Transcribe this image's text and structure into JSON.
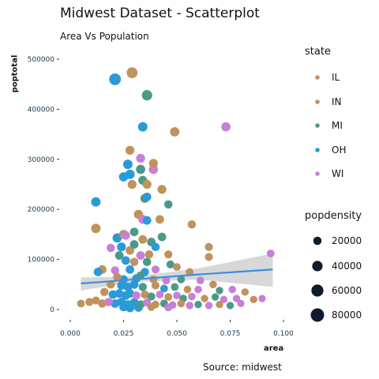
{
  "chart_data": {
    "type": "scatter",
    "title": "Midwest Dataset - Scatterplot",
    "subtitle": "Area Vs Population",
    "caption": "Source: midwest",
    "xlabel": "area",
    "ylabel": "poptotal",
    "xlim": [
      0,
      0.1
    ],
    "ylim": [
      0,
      500000
    ],
    "x_ticks": [
      "0.000",
      "0.025",
      "0.050",
      "0.075",
      "0.100"
    ],
    "y_ticks": [
      "0",
      "100000",
      "200000",
      "300000",
      "400000",
      "500000"
    ],
    "grid": false,
    "legend_placement": "right",
    "color_legend": {
      "title": "state",
      "entries": [
        {
          "name": "IL",
          "color": "#c0925e"
        },
        {
          "name": "IN",
          "color": "#c0925e"
        },
        {
          "name": "MI",
          "color": "#4a9a8a"
        },
        {
          "name": "OH",
          "color": "#2a9ad8"
        },
        {
          "name": "WI",
          "color": "#c77fd8"
        }
      ]
    },
    "size_legend": {
      "title": "popdensity",
      "entries": [
        {
          "label": "20000",
          "value": 20000
        },
        {
          "label": "40000",
          "value": 40000
        },
        {
          "label": "60000",
          "value": 60000
        },
        {
          "label": "80000",
          "value": 80000
        }
      ]
    },
    "trend_line": {
      "color": "#3a8fe0",
      "band_color": "#d4d4d4",
      "points": [
        {
          "x": 0.005,
          "y": 52000,
          "lo": 38000,
          "hi": 64000
        },
        {
          "x": 0.03,
          "y": 60000,
          "lo": 55000,
          "hi": 66000
        },
        {
          "x": 0.06,
          "y": 70000,
          "lo": 60000,
          "hi": 82000
        },
        {
          "x": 0.095,
          "y": 80000,
          "lo": 45000,
          "hi": 112000
        }
      ]
    },
    "points": [
      {
        "x": 0.021,
        "y": 460000,
        "state": "OH",
        "size": 55000
      },
      {
        "x": 0.029,
        "y": 473000,
        "state": "IN",
        "size": 45000
      },
      {
        "x": 0.036,
        "y": 428000,
        "state": "MI",
        "size": 40000
      },
      {
        "x": 0.034,
        "y": 365000,
        "state": "OH",
        "size": 30000
      },
      {
        "x": 0.049,
        "y": 355000,
        "state": "IN",
        "size": 30000
      },
      {
        "x": 0.073,
        "y": 365000,
        "state": "WI",
        "size": 28000
      },
      {
        "x": 0.028,
        "y": 318000,
        "state": "IN",
        "size": 25000
      },
      {
        "x": 0.033,
        "y": 302000,
        "state": "WI",
        "size": 25000
      },
      {
        "x": 0.027,
        "y": 290000,
        "state": "OH",
        "size": 30000
      },
      {
        "x": 0.033,
        "y": 280000,
        "state": "MI",
        "size": 28000
      },
      {
        "x": 0.039,
        "y": 280000,
        "state": "WI",
        "size": 28000
      },
      {
        "x": 0.039,
        "y": 292000,
        "state": "IN",
        "size": 25000
      },
      {
        "x": 0.025,
        "y": 265000,
        "state": "OH",
        "size": 28000
      },
      {
        "x": 0.028,
        "y": 270000,
        "state": "OH",
        "size": 30000
      },
      {
        "x": 0.029,
        "y": 250000,
        "state": "IN",
        "size": 25000
      },
      {
        "x": 0.034,
        "y": 258000,
        "state": "MI",
        "size": 25000
      },
      {
        "x": 0.036,
        "y": 250000,
        "state": "IN",
        "size": 25000
      },
      {
        "x": 0.043,
        "y": 240000,
        "state": "IN",
        "size": 25000
      },
      {
        "x": 0.035,
        "y": 222000,
        "state": "MI",
        "size": 25000
      },
      {
        "x": 0.036,
        "y": 225000,
        "state": "OH",
        "size": 22000
      },
      {
        "x": 0.012,
        "y": 215000,
        "state": "OH",
        "size": 30000
      },
      {
        "x": 0.046,
        "y": 210000,
        "state": "MI",
        "size": 20000
      },
      {
        "x": 0.032,
        "y": 190000,
        "state": "IN",
        "size": 28000
      },
      {
        "x": 0.034,
        "y": 180000,
        "state": "WI",
        "size": 25000
      },
      {
        "x": 0.036,
        "y": 178000,
        "state": "OH",
        "size": 22000
      },
      {
        "x": 0.042,
        "y": 180000,
        "state": "IN",
        "size": 22000
      },
      {
        "x": 0.057,
        "y": 170000,
        "state": "IN",
        "size": 20000
      },
      {
        "x": 0.012,
        "y": 162000,
        "state": "IN",
        "size": 30000
      },
      {
        "x": 0.025,
        "y": 150000,
        "state": "IN",
        "size": 25000
      },
      {
        "x": 0.03,
        "y": 155000,
        "state": "MI",
        "size": 22000
      },
      {
        "x": 0.022,
        "y": 143000,
        "state": "OH",
        "size": 28000
      },
      {
        "x": 0.026,
        "y": 148000,
        "state": "WI",
        "size": 22000
      },
      {
        "x": 0.034,
        "y": 140000,
        "state": "IN",
        "size": 22000
      },
      {
        "x": 0.038,
        "y": 135000,
        "state": "MI",
        "size": 22000
      },
      {
        "x": 0.043,
        "y": 145000,
        "state": "MI",
        "size": 22000
      },
      {
        "x": 0.04,
        "y": 125000,
        "state": "OH",
        "size": 20000
      },
      {
        "x": 0.024,
        "y": 125000,
        "state": "OH",
        "size": 25000
      },
      {
        "x": 0.028,
        "y": 118000,
        "state": "IN",
        "size": 22000
      },
      {
        "x": 0.03,
        "y": 130000,
        "state": "MI",
        "size": 22000
      },
      {
        "x": 0.019,
        "y": 123000,
        "state": "WI",
        "size": 20000
      },
      {
        "x": 0.023,
        "y": 108000,
        "state": "MI",
        "size": 22000
      },
      {
        "x": 0.033,
        "y": 108000,
        "state": "WI",
        "size": 22000
      },
      {
        "x": 0.037,
        "y": 110000,
        "state": "IN",
        "size": 20000
      },
      {
        "x": 0.046,
        "y": 110000,
        "state": "IN",
        "size": 18000
      },
      {
        "x": 0.065,
        "y": 125000,
        "state": "IN",
        "size": 18000
      },
      {
        "x": 0.065,
        "y": 105000,
        "state": "IN",
        "size": 18000
      },
      {
        "x": 0.094,
        "y": 112000,
        "state": "WI",
        "size": 16000
      },
      {
        "x": 0.026,
        "y": 98000,
        "state": "OH",
        "size": 22000
      },
      {
        "x": 0.03,
        "y": 95000,
        "state": "IN",
        "size": 20000
      },
      {
        "x": 0.036,
        "y": 95000,
        "state": "MI",
        "size": 20000
      },
      {
        "x": 0.047,
        "y": 90000,
        "state": "MI",
        "size": 18000
      },
      {
        "x": 0.05,
        "y": 85000,
        "state": "IN",
        "size": 16000
      },
      {
        "x": 0.015,
        "y": 80000,
        "state": "IN",
        "size": 22000
      },
      {
        "x": 0.013,
        "y": 75000,
        "state": "OH",
        "size": 22000
      },
      {
        "x": 0.021,
        "y": 78000,
        "state": "WI",
        "size": 20000
      },
      {
        "x": 0.028,
        "y": 80000,
        "state": "OH",
        "size": 22000
      },
      {
        "x": 0.035,
        "y": 75000,
        "state": "OH",
        "size": 20000
      },
      {
        "x": 0.04,
        "y": 80000,
        "state": "WI",
        "size": 18000
      },
      {
        "x": 0.056,
        "y": 75000,
        "state": "IN",
        "size": 16000
      },
      {
        "x": 0.022,
        "y": 65000,
        "state": "IN",
        "size": 20000
      },
      {
        "x": 0.025,
        "y": 60000,
        "state": "OH",
        "size": 22000
      },
      {
        "x": 0.031,
        "y": 62000,
        "state": "OH",
        "size": 22000
      },
      {
        "x": 0.033,
        "y": 68000,
        "state": "MI",
        "size": 20000
      },
      {
        "x": 0.039,
        "y": 60000,
        "state": "IN",
        "size": 18000
      },
      {
        "x": 0.045,
        "y": 58000,
        "state": "WI",
        "size": 16000
      },
      {
        "x": 0.052,
        "y": 60000,
        "state": "MI",
        "size": 16000
      },
      {
        "x": 0.061,
        "y": 58000,
        "state": "WI",
        "size": 15000
      },
      {
        "x": 0.067,
        "y": 50000,
        "state": "IN",
        "size": 15000
      },
      {
        "x": 0.019,
        "y": 50000,
        "state": "IN",
        "size": 20000
      },
      {
        "x": 0.024,
        "y": 48000,
        "state": "OH",
        "size": 22000
      },
      {
        "x": 0.027,
        "y": 45000,
        "state": "OH",
        "size": 22000
      },
      {
        "x": 0.03,
        "y": 50000,
        "state": "OH",
        "size": 22000
      },
      {
        "x": 0.034,
        "y": 45000,
        "state": "MI",
        "size": 20000
      },
      {
        "x": 0.04,
        "y": 48000,
        "state": "IN",
        "size": 18000
      },
      {
        "x": 0.044,
        "y": 42000,
        "state": "OH",
        "size": 16000
      },
      {
        "x": 0.049,
        "y": 45000,
        "state": "MI",
        "size": 16000
      },
      {
        "x": 0.055,
        "y": 40000,
        "state": "IN",
        "size": 15000
      },
      {
        "x": 0.06,
        "y": 40000,
        "state": "WI",
        "size": 15000
      },
      {
        "x": 0.07,
        "y": 38000,
        "state": "MI",
        "size": 14000
      },
      {
        "x": 0.076,
        "y": 40000,
        "state": "WI",
        "size": 14000
      },
      {
        "x": 0.082,
        "y": 35000,
        "state": "IN",
        "size": 14000
      },
      {
        "x": 0.016,
        "y": 35000,
        "state": "IN",
        "size": 20000
      },
      {
        "x": 0.02,
        "y": 30000,
        "state": "OH",
        "size": 22000
      },
      {
        "x": 0.023,
        "y": 32000,
        "state": "OH",
        "size": 22000
      },
      {
        "x": 0.026,
        "y": 28000,
        "state": "OH",
        "size": 22000
      },
      {
        "x": 0.028,
        "y": 32000,
        "state": "OH",
        "size": 22000
      },
      {
        "x": 0.031,
        "y": 28000,
        "state": "WI",
        "size": 20000
      },
      {
        "x": 0.035,
        "y": 30000,
        "state": "IN",
        "size": 18000
      },
      {
        "x": 0.038,
        "y": 26000,
        "state": "MI",
        "size": 18000
      },
      {
        "x": 0.042,
        "y": 30000,
        "state": "WI",
        "size": 16000
      },
      {
        "x": 0.046,
        "y": 25000,
        "state": "IN",
        "size": 16000
      },
      {
        "x": 0.05,
        "y": 28000,
        "state": "WI",
        "size": 15000
      },
      {
        "x": 0.053,
        "y": 22000,
        "state": "MI",
        "size": 15000
      },
      {
        "x": 0.057,
        "y": 26000,
        "state": "WI",
        "size": 15000
      },
      {
        "x": 0.063,
        "y": 22000,
        "state": "IN",
        "size": 14000
      },
      {
        "x": 0.068,
        "y": 25000,
        "state": "MI",
        "size": 14000
      },
      {
        "x": 0.072,
        "y": 20000,
        "state": "WI",
        "size": 14000
      },
      {
        "x": 0.078,
        "y": 22000,
        "state": "WI",
        "size": 14000
      },
      {
        "x": 0.086,
        "y": 20000,
        "state": "IN",
        "size": 14000
      },
      {
        "x": 0.09,
        "y": 22000,
        "state": "WI",
        "size": 13000
      },
      {
        "x": 0.005,
        "y": 12000,
        "state": "IN",
        "size": 16000
      },
      {
        "x": 0.009,
        "y": 15000,
        "state": "IN",
        "size": 18000
      },
      {
        "x": 0.012,
        "y": 18000,
        "state": "IN",
        "size": 18000
      },
      {
        "x": 0.015,
        "y": 12000,
        "state": "IN",
        "size": 20000
      },
      {
        "x": 0.018,
        "y": 15000,
        "state": "WI",
        "size": 20000
      },
      {
        "x": 0.021,
        "y": 12000,
        "state": "OH",
        "size": 22000
      },
      {
        "x": 0.024,
        "y": 15000,
        "state": "OH",
        "size": 22000
      },
      {
        "x": 0.027,
        "y": 10000,
        "state": "OH",
        "size": 22000
      },
      {
        "x": 0.03,
        "y": 14000,
        "state": "OH",
        "size": 22000
      },
      {
        "x": 0.033,
        "y": 10000,
        "state": "MI",
        "size": 20000
      },
      {
        "x": 0.036,
        "y": 14000,
        "state": "WI",
        "size": 18000
      },
      {
        "x": 0.04,
        "y": 10000,
        "state": "IN",
        "size": 16000
      },
      {
        "x": 0.044,
        "y": 12000,
        "state": "MI",
        "size": 16000
      },
      {
        "x": 0.048,
        "y": 9000,
        "state": "WI",
        "size": 15000
      },
      {
        "x": 0.052,
        "y": 12000,
        "state": "IN",
        "size": 15000
      },
      {
        "x": 0.056,
        "y": 8000,
        "state": "WI",
        "size": 15000
      },
      {
        "x": 0.06,
        "y": 10000,
        "state": "MI",
        "size": 14000
      },
      {
        "x": 0.065,
        "y": 8000,
        "state": "WI",
        "size": 14000
      },
      {
        "x": 0.07,
        "y": 10000,
        "state": "IN",
        "size": 14000
      },
      {
        "x": 0.075,
        "y": 8000,
        "state": "MI",
        "size": 14000
      },
      {
        "x": 0.08,
        "y": 12000,
        "state": "WI",
        "size": 13000
      },
      {
        "x": 0.025,
        "y": 5000,
        "state": "OH",
        "size": 22000
      },
      {
        "x": 0.028,
        "y": 3000,
        "state": "OH",
        "size": 22000
      },
      {
        "x": 0.032,
        "y": 4000,
        "state": "OH",
        "size": 22000
      },
      {
        "x": 0.038,
        "y": 5000,
        "state": "IN",
        "size": 16000
      },
      {
        "x": 0.046,
        "y": 4000,
        "state": "WI",
        "size": 15000
      }
    ]
  }
}
